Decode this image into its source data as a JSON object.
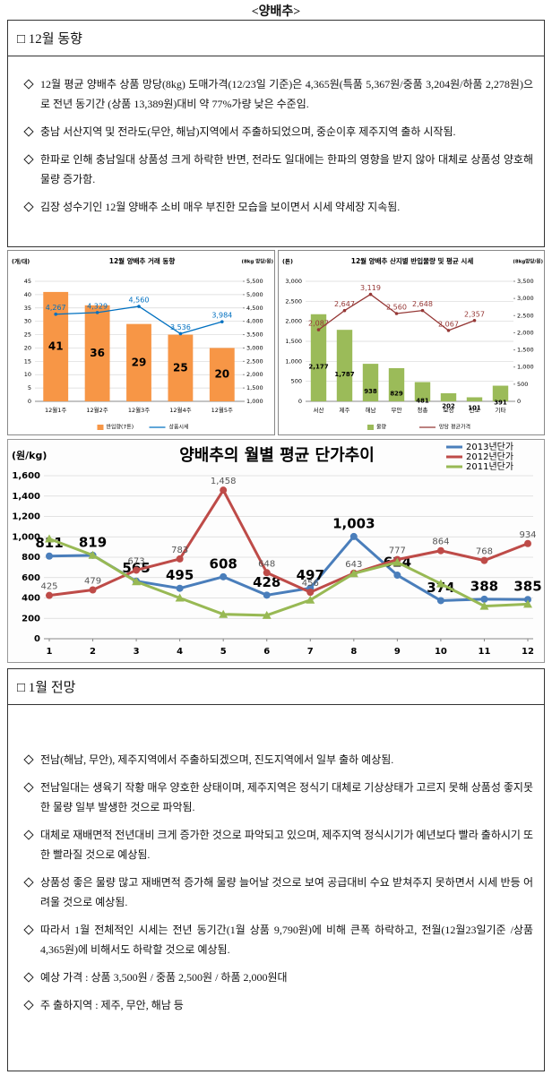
{
  "title": "<양배추>",
  "section1": {
    "heading": "□ 12월 동향",
    "items": [
      "12월 평균 양배추 상품 망당(8kg) 도매가격(12/23일 기준)은 4,365원(특품 5,367원/중품 3,204원/하품 2,278원)으로 전년 동기간 (상품 13,389원)대비 약 77%가량 낮은 수준임.",
      "충남 서산지역 및 전라도(무안, 해남)지역에서 주출하되었으며, 중순이후 제주지역 출하 시작됨.",
      "한파로 인해 충남일대 상품성 크게 하락한 반면, 전라도 일대에는 한파의 영향을 받지 않아 대체로 상품성 양호해 물량 증가함.",
      "김장 성수기인 12월 양배추 소비 매우 부진한 모습을 보이면서 시세 약세장 지속됨."
    ]
  },
  "chart_data": [
    {
      "type": "bar",
      "title": "12월 양배추 거래 동향",
      "y_label": "(개/대)",
      "y2_label": "(8kg 망당/원)",
      "categories": [
        "12월1주",
        "12월2주",
        "12월3주",
        "12월4주",
        "12월5주"
      ],
      "series": [
        {
          "name": "반입량(7톤)",
          "color": "#f79646",
          "values": [
            41,
            36,
            29,
            25,
            20
          ]
        },
        {
          "name": "상품시세",
          "color": "#0070c0",
          "axis": "y2",
          "values": [
            4267,
            4329,
            4560,
            3536,
            3984
          ],
          "value_labels": [
            "4,267",
            "4,329",
            "4,560",
            "3,536",
            "3,984"
          ]
        }
      ],
      "ylim": [
        0,
        45
      ],
      "yticks": [
        0,
        5,
        10,
        15,
        20,
        25,
        30,
        35,
        40,
        45
      ],
      "y2lim": [
        1000,
        5500
      ],
      "y2ticks": [
        {
          "value": 1000,
          "label": "1,000"
        },
        {
          "value": 1500,
          "label": "1,500"
        },
        {
          "value": 2000,
          "label": "2,000"
        },
        {
          "value": 2500,
          "label": "2,500"
        },
        {
          "value": 3000,
          "label": "3,000"
        },
        {
          "value": 3500,
          "label": "3,500"
        },
        {
          "value": 4000,
          "label": "4,000"
        },
        {
          "value": 4500,
          "label": "4,500"
        },
        {
          "value": 5000,
          "label": "5,000"
        },
        {
          "value": 5500,
          "label": "5,500"
        }
      ],
      "grid": true,
      "legend": "bottom"
    },
    {
      "type": "bar",
      "title": "12월 양배추 산지별 반입물량 및 평균 시세",
      "y_label": "(톤)",
      "y2_label": "(8kg망당/원)",
      "categories": [
        "서산",
        "제주",
        "해남",
        "무안",
        "청총",
        "보성",
        "진도",
        "기타"
      ],
      "series": [
        {
          "name": "물량",
          "color": "#9bbb59",
          "values": [
            2177,
            1787,
            938,
            829,
            481,
            202,
            101,
            391
          ],
          "value_labels": [
            "2,177",
            "1,787",
            "938",
            "829",
            "481",
            "202",
            "101",
            "391"
          ]
        },
        {
          "name": "망당 평균가격",
          "color": "#953735",
          "axis": "y2",
          "values": [
            2087,
            2647,
            3119,
            2560,
            2648,
            2067,
            2357,
            null
          ],
          "value_labels": [
            "2,087",
            "2,647",
            "3,119",
            "2,560",
            "2,648",
            "2,067",
            "2,357",
            null
          ]
        }
      ],
      "ylim": [
        0,
        3000
      ],
      "yticks": [
        0,
        500,
        {
          "value": 1000,
          "label": "1,000"
        },
        {
          "value": 1500,
          "label": "1,500"
        },
        {
          "value": 2000,
          "label": "2,000"
        },
        {
          "value": 2500,
          "label": "2,500"
        },
        {
          "value": 3000,
          "label": "3,000"
        }
      ],
      "y2lim": [
        0,
        3500
      ],
      "y2ticks": [
        0,
        500,
        {
          "value": 1000,
          "label": "1,000"
        },
        {
          "value": 1500,
          "label": "1,500"
        },
        {
          "value": 2000,
          "label": "2,000"
        },
        {
          "value": 2500,
          "label": "2,500"
        },
        {
          "value": 3000,
          "label": "3,000"
        },
        {
          "value": 3500,
          "label": "3,500"
        }
      ],
      "grid": true,
      "legend": "bottom"
    },
    {
      "type": "line",
      "title": "양배추의 월별 평균 단가추이",
      "y_label": "(원/kg)",
      "x": [
        1,
        2,
        3,
        4,
        5,
        6,
        7,
        8,
        9,
        10,
        11,
        12
      ],
      "xlim": [
        1,
        12
      ],
      "xticks": [
        1,
        2,
        3,
        4,
        5,
        6,
        7,
        8,
        9,
        10,
        11,
        12
      ],
      "series": [
        {
          "name": "2013년단가",
          "color": "#4a7ebb",
          "values": [
            811,
            819,
            565,
            495,
            608,
            428,
            497,
            1003,
            624,
            374,
            388,
            385
          ],
          "value_labels": [
            "811",
            "819",
            "565",
            "495",
            "608",
            "428",
            "497",
            "1,003",
            "624",
            "374",
            "388",
            "385"
          ]
        },
        {
          "name": "2012년단가",
          "color": "#be4b48",
          "values": [
            425,
            479,
            673,
            783,
            1458,
            648,
            456,
            643,
            777,
            864,
            768,
            934
          ],
          "value_labels": [
            "425",
            "479",
            "673",
            "783",
            "1,458",
            "648",
            "456",
            "643",
            "777",
            "864",
            "768",
            "934"
          ]
        },
        {
          "name": "2011년단가",
          "color": "#98b954",
          "values": [
            980,
            820,
            560,
            400,
            240,
            230,
            380,
            640,
            750,
            540,
            320,
            340
          ]
        }
      ],
      "ylim": [
        0,
        1600
      ],
      "yticks": [
        0,
        200,
        400,
        600,
        800,
        {
          "value": 1000,
          "label": "1,000"
        },
        {
          "value": 1200,
          "label": "1,200"
        },
        {
          "value": 1400,
          "label": "1,400"
        },
        {
          "value": 1600,
          "label": "1,600"
        }
      ],
      "grid": true,
      "legend": "top-right"
    }
  ],
  "section2": {
    "heading": "□ 1월 전망",
    "items": [
      "전남(해남, 무안), 제주지역에서 주출하되겠으며, 진도지역에서 일부 출하 예상됨.",
      "전남일대는 생육기 작황 매우 양호한 상태이며, 제주지역은 정식기 대체로 기상상태가 고르지 못해 상품성 좋지못한 물량 일부 발생한 것으로 파악됨.",
      "대체로 재배면적 전년대비 크게 증가한 것으로 파악되고 있으며, 제주지역 정식시기가 예년보다 빨라 출하시기 또한 빨라질 것으로 예상됨.",
      "상품성 좋은 물량 많고 재배면적 증가해 물량 늘어날 것으로 보여 공급대비 수요 받쳐주지 못하면서 시세 반등 어려울 것으로 예상됨.",
      "따라서 1월 전체적인 시세는 전년 동기간(1월 상품 9,790원)에 비해 큰폭 하락하고, 전월(12월23일기준 /상품 4,365원)에 비해서도 하락할 것으로 예상됨.",
      "예상 가격 : 상품 3,500원 / 중품 2,500원 / 하품 2,000원대",
      "주 출하지역 : 제주, 무안, 해남 등"
    ]
  }
}
